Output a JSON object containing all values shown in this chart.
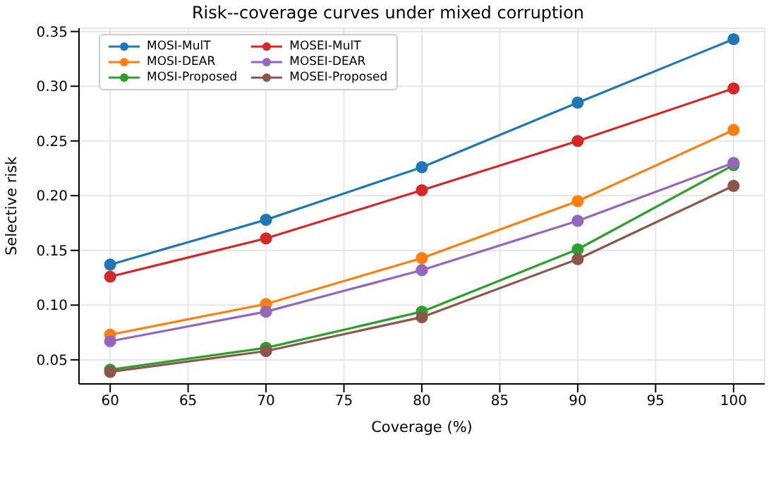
{
  "chart_data": {
    "type": "line",
    "title": "Risk--coverage curves under mixed corruption",
    "xlabel": "Coverage (%)",
    "ylabel": "Selective risk",
    "x": [
      60,
      70,
      80,
      90,
      100
    ],
    "series": [
      {
        "name": "MOSI-MulT",
        "color": "#1f77b4",
        "values": [
          0.137,
          0.178,
          0.226,
          0.285,
          0.343
        ]
      },
      {
        "name": "MOSI-DEAR",
        "color": "#ff7f0e",
        "values": [
          0.073,
          0.101,
          0.143,
          0.195,
          0.26
        ]
      },
      {
        "name": "MOSI-Proposed",
        "color": "#2ca02c",
        "values": [
          0.041,
          0.061,
          0.094,
          0.151,
          0.228
        ]
      },
      {
        "name": "MOSEI-MulT",
        "color": "#d62728",
        "values": [
          0.126,
          0.161,
          0.205,
          0.25,
          0.298
        ]
      },
      {
        "name": "MOSEI-DEAR",
        "color": "#9467bd",
        "values": [
          0.067,
          0.094,
          0.132,
          0.177,
          0.23
        ]
      },
      {
        "name": "MOSEI-Proposed",
        "color": "#8c564b",
        "values": [
          0.039,
          0.058,
          0.089,
          0.142,
          0.209
        ]
      }
    ],
    "xlim": [
      58,
      102
    ],
    "xticks": [
      60,
      65,
      70,
      75,
      80,
      85,
      90,
      95,
      100
    ],
    "ylim": [
      0.028,
      0.353
    ],
    "yticks": [
      0.05,
      {
        "value": 0.1,
        "label": "0.10"
      },
      0.15,
      {
        "value": 0.2,
        "label": "0.20"
      },
      0.25,
      {
        "value": 0.3,
        "label": "0.30"
      },
      0.35
    ],
    "grid": true,
    "legend": "top left",
    "marker": "circle",
    "line_style": "solid"
  }
}
